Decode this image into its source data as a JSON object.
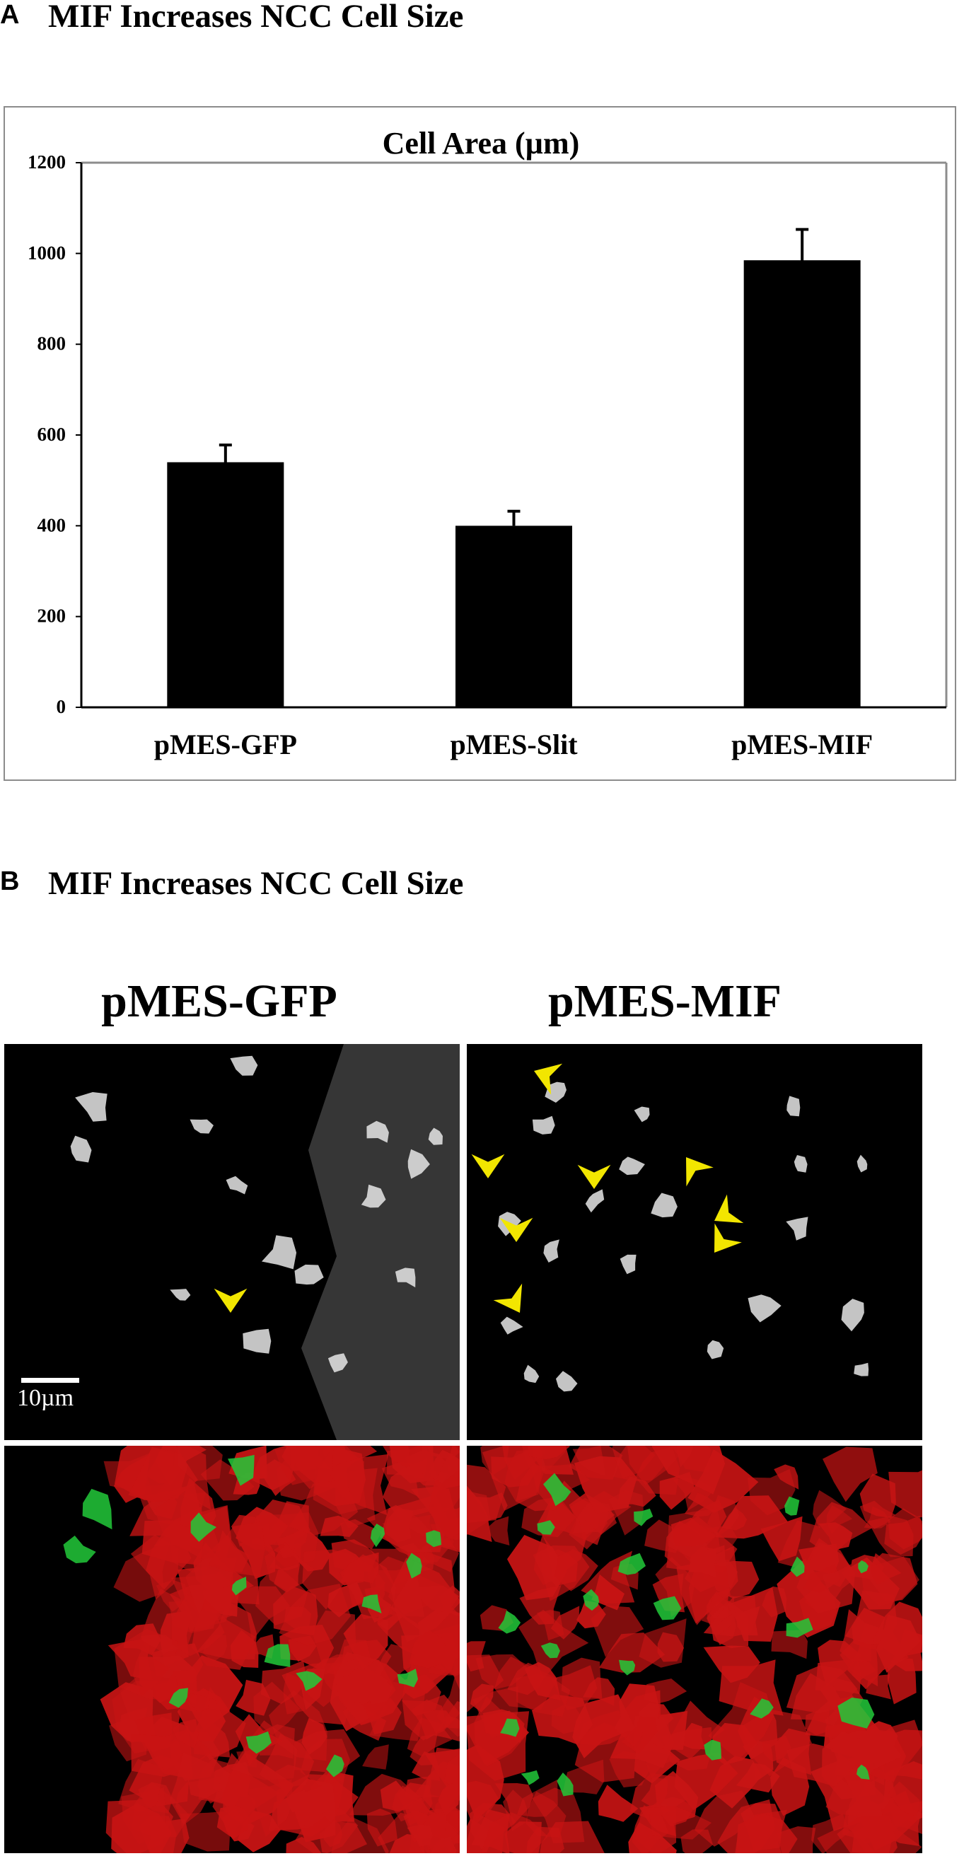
{
  "panel_a": {
    "letter": "A",
    "title": "MIF Increases NCC Cell Size"
  },
  "chart_data": {
    "type": "bar",
    "title": "Cell Area (µm)",
    "xlabel": "",
    "ylabel": "",
    "categories": [
      "pMES-GFP",
      "pMES-Slit",
      "pMES-MIF"
    ],
    "values": [
      540,
      400,
      985
    ],
    "error": [
      38,
      32,
      68
    ],
    "ylim": [
      0,
      1200
    ],
    "yticks": [
      0,
      200,
      400,
      600,
      800,
      1000,
      1200
    ],
    "grid": false,
    "colors": {
      "bar": "#000000",
      "plot_border": "#8c8c8c"
    }
  },
  "panel_b": {
    "letter": "B",
    "title": "MIF Increases NCC Cell Size",
    "columns": [
      "pMES-GFP",
      "pMES-MIF"
    ],
    "scale_bar_label": "10µm",
    "colors": {
      "arrowhead": "#f2e600",
      "gfp": "#22c93a",
      "membrane": "#c81414"
    }
  }
}
